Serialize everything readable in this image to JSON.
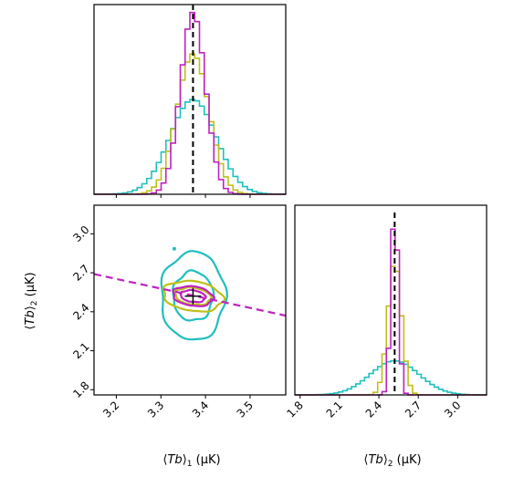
{
  "colors": {
    "cyan": "#1fbfbf",
    "olive": "#bfbf1a",
    "magenta": "#bf22bf",
    "truth": "#000000"
  },
  "chart_data": [
    {
      "panel": "top-left",
      "type": "histogram",
      "x_param": "Tb1",
      "xlim": [
        3.15,
        3.58
      ],
      "truth": 3.372,
      "series": [
        {
          "color": "cyan",
          "mean": 3.372,
          "sigma": 0.052,
          "peak": 0.5
        },
        {
          "color": "olive",
          "mean": 3.372,
          "sigma": 0.036,
          "peak": 0.74
        },
        {
          "color": "magenta",
          "mean": 3.372,
          "sigma": 0.028,
          "peak": 0.96
        }
      ]
    },
    {
      "panel": "bottom-left",
      "type": "contour",
      "xlim": [
        3.15,
        3.58
      ],
      "ylim": [
        1.76,
        3.22
      ],
      "x_ticks": [
        "3.2",
        "3.3",
        "3.4",
        "3.5"
      ],
      "y_ticks": [
        "1.8",
        "2.1",
        "2.4",
        "2.7",
        "3.0"
      ],
      "xlabel_parts": {
        "pre": "⟨",
        "var": "Tb",
        "post": "⟩",
        "sub": "1",
        "unit": " (μK)"
      },
      "ylabel_parts": {
        "pre": "⟨",
        "var": "Tb",
        "post": "⟩",
        "sub": "2",
        "unit": " (μK)"
      },
      "truth_point": [
        3.372,
        2.52
      ],
      "degeneracy_line": {
        "x": [
          3.15,
          3.58
        ],
        "y": [
          2.69,
          2.37
        ],
        "color": "magenta",
        "style": "dashed"
      },
      "contours": [
        {
          "color": "cyan",
          "rx": [
            0.045,
            0.072
          ],
          "ry": [
            0.19,
            0.34
          ],
          "tilt": 0
        },
        {
          "color": "olive",
          "rx": [
            0.04,
            0.067
          ],
          "ry": [
            0.065,
            0.115
          ],
          "tilt": -0.35
        },
        {
          "color": "magenta",
          "rx": [
            0.028,
            0.045
          ],
          "ry": [
            0.045,
            0.075
          ],
          "tilt": -0.35
        }
      ]
    },
    {
      "panel": "bottom-right",
      "type": "histogram",
      "x_param": "Tb2",
      "xlim": [
        1.76,
        3.22
      ],
      "x_ticks": [
        "1.8",
        "2.1",
        "2.4",
        "2.7",
        "3.0"
      ],
      "xlabel_parts": {
        "pre": "⟨",
        "var": "Tb",
        "post": "⟩",
        "sub": "2",
        "unit": " (μK)"
      },
      "truth": 2.52,
      "series": [
        {
          "color": "cyan",
          "mean": 2.52,
          "sigma": 0.185,
          "peak": 0.18
        },
        {
          "color": "olive",
          "mean": 2.52,
          "sigma": 0.052,
          "peak": 0.7
        },
        {
          "color": "magenta",
          "mean": 2.52,
          "sigma": 0.028,
          "peak": 0.98
        }
      ]
    }
  ]
}
